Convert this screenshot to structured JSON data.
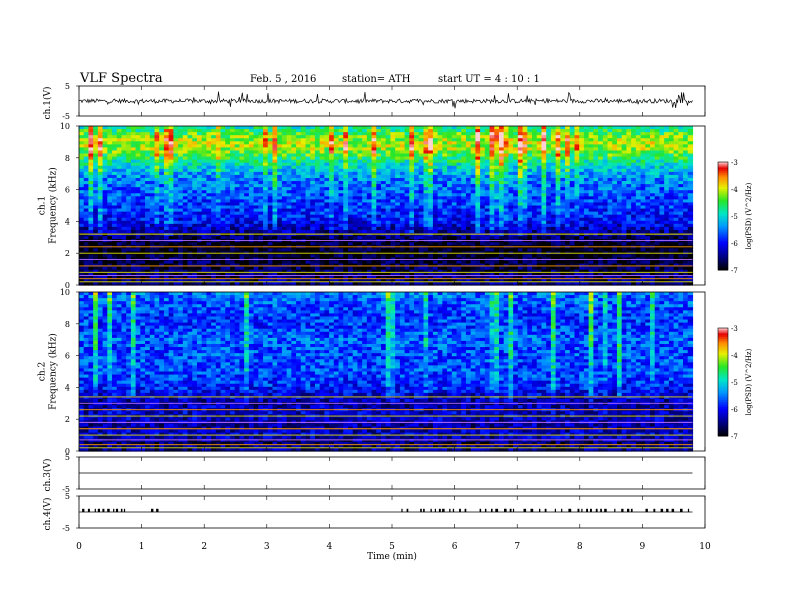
{
  "header": {
    "title": "VLF  Spectra",
    "date": "Feb. 5  , 2016",
    "station": "station= ATH",
    "start": "start  UT  =   4  : 10 : 1"
  },
  "chart_data": [
    {
      "type": "line",
      "ylabel": "ch.1(V)",
      "ylim": [
        -5,
        5
      ],
      "yticks": [
        "5",
        "-5"
      ],
      "xlim": [
        0,
        10
      ],
      "baseline": 0.0,
      "noise_band": [
        -0.7,
        0.7
      ],
      "spike_range": [
        -2.5,
        3.2
      ]
    },
    {
      "type": "heatmap",
      "ylabel": "ch.1\nFrequency  (kHz)",
      "ylim": [
        0,
        10
      ],
      "yticks": [
        "0",
        "2",
        "4",
        "6",
        "8",
        "10"
      ],
      "xlim": [
        0,
        10
      ],
      "data_end_min": 9.8,
      "colorbar": {
        "label": "log(PSD) (V^2/Hz)",
        "range": [
          -7,
          -3
        ],
        "ticks": [
          "-3",
          "-4",
          "-5",
          "-6",
          "-7"
        ]
      },
      "log_psd_profile": [
        {
          "f": 0.0,
          "v": -6.5
        },
        {
          "f": 0.5,
          "v": -6.6
        },
        {
          "f": 1.0,
          "v": -6.7
        },
        {
          "f": 1.5,
          "v": -6.8
        },
        {
          "f": 2.0,
          "v": -6.9
        },
        {
          "f": 2.5,
          "v": -6.9
        },
        {
          "f": 3.0,
          "v": -6.6
        },
        {
          "f": 3.5,
          "v": -6.3
        },
        {
          "f": 4.0,
          "v": -6.0
        },
        {
          "f": 4.5,
          "v": -5.9
        },
        {
          "f": 5.0,
          "v": -5.8
        },
        {
          "f": 5.5,
          "v": -5.7
        },
        {
          "f": 6.0,
          "v": -5.6
        },
        {
          "f": 6.5,
          "v": -5.5
        },
        {
          "f": 7.0,
          "v": -5.3
        },
        {
          "f": 7.5,
          "v": -5.0
        },
        {
          "f": 8.0,
          "v": -4.6
        },
        {
          "f": 8.5,
          "v": -4.2
        },
        {
          "f": 9.0,
          "v": -4.1
        },
        {
          "f": 9.5,
          "v": -4.4
        },
        {
          "f": 10.0,
          "v": -4.9
        }
      ],
      "tone_lines_khz": [
        0.2,
        0.4,
        0.6,
        0.8,
        1.2,
        1.6,
        2.0,
        2.4,
        2.8,
        3.2
      ]
    },
    {
      "type": "heatmap",
      "ylabel": "ch.2\nFrequency  (kHz)",
      "ylim": [
        0,
        10
      ],
      "yticks": [
        "0",
        "2",
        "4",
        "6",
        "8",
        "10"
      ],
      "xlim": [
        0,
        10
      ],
      "data_end_min": 9.8,
      "colorbar": {
        "label": "log(PSD) (V^2/Hz)",
        "range": [
          -7,
          -3
        ],
        "ticks": [
          "-3",
          "-4",
          "-5",
          "-6",
          "-7"
        ]
      },
      "log_psd_profile": [
        {
          "f": 0.0,
          "v": -6.4
        },
        {
          "f": 0.5,
          "v": -6.6
        },
        {
          "f": 1.0,
          "v": -6.2
        },
        {
          "f": 1.5,
          "v": -6.4
        },
        {
          "f": 2.0,
          "v": -6.3
        },
        {
          "f": 2.5,
          "v": -6.2
        },
        {
          "f": 3.0,
          "v": -6.4
        },
        {
          "f": 3.5,
          "v": -6.2
        },
        {
          "f": 4.0,
          "v": -5.9
        },
        {
          "f": 4.5,
          "v": -5.8
        },
        {
          "f": 5.0,
          "v": -5.7
        },
        {
          "f": 5.5,
          "v": -5.7
        },
        {
          "f": 6.0,
          "v": -5.7
        },
        {
          "f": 6.5,
          "v": -5.7
        },
        {
          "f": 7.0,
          "v": -5.6
        },
        {
          "f": 7.5,
          "v": -5.7
        },
        {
          "f": 8.0,
          "v": -5.8
        },
        {
          "f": 8.5,
          "v": -5.8
        },
        {
          "f": 9.0,
          "v": -5.7
        },
        {
          "f": 9.5,
          "v": -5.6
        },
        {
          "f": 10.0,
          "v": -5.5
        }
      ],
      "tone_lines_khz": [
        0.2,
        0.4,
        0.7,
        1.0,
        1.4,
        1.8,
        2.2,
        2.6,
        3.0,
        3.4
      ]
    },
    {
      "type": "line",
      "ylabel": "ch.3(V)",
      "ylim": [
        -5,
        5
      ],
      "yticks": [
        "5",
        "-5"
      ],
      "xlim": [
        0,
        10
      ],
      "baseline": 0.0
    },
    {
      "type": "line",
      "ylabel": "ch.4(V)",
      "ylim": [
        -5,
        5
      ],
      "yticks": [
        "5",
        "-5"
      ],
      "xlim": [
        0,
        10
      ],
      "baseline": 0.0,
      "pulse_level": 1.0,
      "pulse_groups_min": [
        [
          0.05,
          0.75
        ],
        [
          1.15,
          1.25
        ],
        [
          5.15,
          5.3
        ],
        [
          5.45,
          6.2
        ],
        [
          6.4,
          6.8
        ],
        [
          6.8,
          7.0
        ],
        [
          7.1,
          7.45
        ],
        [
          7.6,
          8.4
        ],
        [
          8.55,
          8.9
        ],
        [
          9.05,
          9.5
        ],
        [
          9.6,
          9.75
        ]
      ]
    }
  ],
  "xaxis": {
    "label": "Time  (min)",
    "ticks": [
      "0",
      "1",
      "2",
      "3",
      "4",
      "5",
      "6",
      "7",
      "8",
      "9",
      "10"
    ]
  }
}
